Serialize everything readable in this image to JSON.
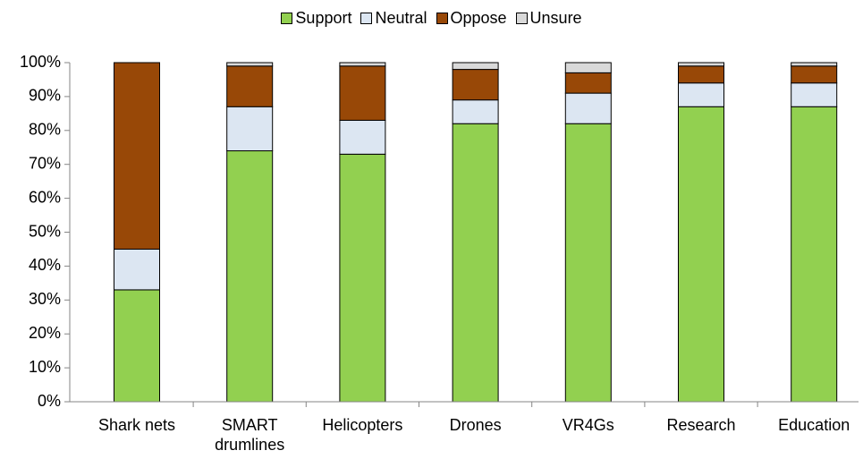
{
  "chart_data": {
    "type": "stacked_bar",
    "categories": [
      "Shark nets",
      "SMART drumlines",
      "Helicopters",
      "Drones",
      "VR4Gs",
      "Research",
      "Education"
    ],
    "series": [
      {
        "name": "Support",
        "color": "#92d050",
        "values": [
          33,
          74,
          73,
          82,
          82,
          87,
          87
        ]
      },
      {
        "name": "Neutral",
        "color": "#dce6f2",
        "values": [
          12,
          13,
          10,
          7,
          9,
          7,
          7
        ]
      },
      {
        "name": "Oppose",
        "color": "#984807",
        "values": [
          55,
          12,
          16,
          9,
          6,
          5,
          5
        ]
      },
      {
        "name": "Unsure",
        "color": "#d9d9d9",
        "values": [
          0,
          1,
          1,
          2,
          3,
          1,
          1
        ]
      }
    ],
    "ylim": [
      0,
      100
    ],
    "yticks": [
      {
        "value": 0,
        "label": "0%"
      },
      {
        "value": 10,
        "label": "10%"
      },
      {
        "value": 20,
        "label": "20%"
      },
      {
        "value": 30,
        "label": "30%"
      },
      {
        "value": 40,
        "label": "40%"
      },
      {
        "value": 50,
        "label": "50%"
      },
      {
        "value": 60,
        "label": "60%"
      },
      {
        "value": 70,
        "label": "70%"
      },
      {
        "value": 80,
        "label": "80%"
      },
      {
        "value": 90,
        "label": "90%"
      },
      {
        "value": 100,
        "label": "100%"
      }
    ],
    "legend": "top",
    "grid": false
  }
}
